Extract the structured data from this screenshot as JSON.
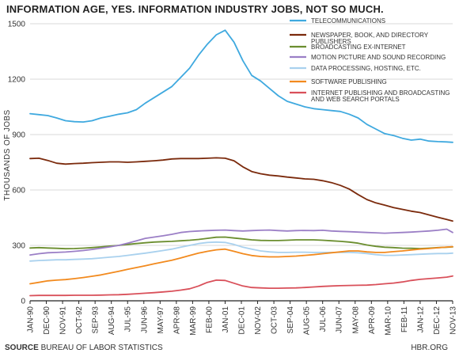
{
  "header": {
    "title": "INFORMATION AGE, YES. INFORMATION INDUSTRY JOBS, NOT SO MUCH."
  },
  "footer": {
    "source_label": "SOURCE",
    "source_text": "BUREAU OF LABOR STATISTICS",
    "brand": "HBR.ORG"
  },
  "chart_data": {
    "type": "line",
    "title": "INFORMATION AGE, YES. INFORMATION INDUSTRY JOBS, NOT SO MUCH.",
    "xlabel": "",
    "ylabel": "THOUSANDS OF JOBS",
    "ylim": [
      0,
      1500
    ],
    "yticks": [
      0,
      300,
      600,
      900,
      1200,
      1500
    ],
    "xlim": [
      "1990-01",
      "2013-11"
    ],
    "grid": "horizontal",
    "legend": "top-right",
    "xtick_labels": [
      "JAN-90",
      "DEC-90",
      "NOV-91",
      "OCT-92",
      "SEP-93",
      "AUG-94",
      "JUL-95",
      "JUN-96",
      "MAY-97",
      "APR-98",
      "MAR-99",
      "FEB-00",
      "JAN-01",
      "DEC-01",
      "NOV-02",
      "OCT-03",
      "SEP-04",
      "AUG-05",
      "JUL-06",
      "JUN-07",
      "MAY-08",
      "APR-09",
      "MAR-10",
      "FEB-11",
      "JAN-12",
      "DEC-12",
      "NOV-13"
    ],
    "x": [
      "1990-01",
      "1990-07",
      "1991-01",
      "1991-07",
      "1992-01",
      "1992-07",
      "1993-01",
      "1993-07",
      "1994-01",
      "1994-07",
      "1995-01",
      "1995-07",
      "1996-01",
      "1996-07",
      "1997-01",
      "1997-07",
      "1998-01",
      "1998-07",
      "1999-01",
      "1999-07",
      "2000-01",
      "2000-07",
      "2001-01",
      "2001-07",
      "2002-01",
      "2002-07",
      "2003-01",
      "2003-07",
      "2004-01",
      "2004-07",
      "2005-01",
      "2005-07",
      "2006-01",
      "2006-07",
      "2007-01",
      "2007-07",
      "2008-01",
      "2008-07",
      "2009-01",
      "2009-07",
      "2010-01",
      "2010-07",
      "2011-01",
      "2011-07",
      "2012-01",
      "2012-07",
      "2013-01",
      "2013-07",
      "2013-11"
    ],
    "series": [
      {
        "name": "TELECOMMUNICATIONS",
        "color": "#3fa9df",
        "values": [
          1013,
          1008,
          1003,
          990,
          975,
          970,
          968,
          975,
          990,
          1000,
          1010,
          1018,
          1035,
          1070,
          1100,
          1130,
          1160,
          1210,
          1260,
          1330,
          1390,
          1440,
          1465,
          1400,
          1300,
          1220,
          1190,
          1150,
          1110,
          1080,
          1065,
          1050,
          1040,
          1035,
          1030,
          1025,
          1010,
          990,
          955,
          930,
          905,
          895,
          880,
          870,
          875,
          865,
          862,
          860,
          858
        ]
      },
      {
        "name": "NEWSPAPER, BOOK, AND DIRECTORY PUBLISHERS",
        "color": "#7b2a0c",
        "values": [
          770,
          772,
          760,
          745,
          740,
          743,
          745,
          748,
          750,
          752,
          752,
          750,
          752,
          755,
          758,
          762,
          768,
          770,
          770,
          770,
          772,
          774,
          772,
          758,
          725,
          700,
          688,
          680,
          676,
          670,
          665,
          660,
          658,
          650,
          640,
          625,
          605,
          575,
          548,
          530,
          518,
          505,
          495,
          485,
          478,
          465,
          452,
          440,
          432
        ]
      },
      {
        "name": "BROADCASTING EX-INTERNET",
        "color": "#6b8e2f",
        "values": [
          286,
          288,
          286,
          284,
          282,
          283,
          285,
          288,
          292,
          296,
          300,
          305,
          310,
          314,
          318,
          320,
          322,
          325,
          328,
          332,
          338,
          344,
          345,
          340,
          335,
          330,
          327,
          326,
          326,
          328,
          330,
          330,
          330,
          328,
          325,
          322,
          318,
          312,
          302,
          295,
          290,
          288,
          285,
          284,
          283,
          285,
          288,
          290,
          292
        ]
      },
      {
        "name": "MOTION PICTURE AND SOUND RECORDING",
        "color": "#9b7fc6",
        "values": [
          248,
          255,
          260,
          262,
          264,
          268,
          272,
          278,
          285,
          292,
          300,
          312,
          325,
          338,
          345,
          352,
          360,
          370,
          375,
          378,
          380,
          382,
          383,
          380,
          378,
          380,
          382,
          383,
          380,
          378,
          380,
          381,
          380,
          382,
          378,
          376,
          374,
          372,
          370,
          368,
          366,
          368,
          370,
          372,
          375,
          378,
          382,
          388,
          370
        ]
      },
      {
        "name": "DATA PROCESSING, HOSTING, ETC.",
        "color": "#a9d1ee",
        "values": [
          215,
          218,
          220,
          222,
          222,
          224,
          226,
          228,
          232,
          236,
          240,
          246,
          252,
          258,
          265,
          272,
          280,
          290,
          300,
          310,
          316,
          318,
          316,
          305,
          290,
          280,
          270,
          265,
          262,
          262,
          263,
          263,
          262,
          262,
          262,
          262,
          262,
          260,
          256,
          250,
          246,
          246,
          248,
          250,
          252,
          254,
          256,
          256,
          258
        ]
      },
      {
        "name": "SOFTWARE PUBLISHING",
        "color": "#f28a1e",
        "values": [
          92,
          100,
          108,
          112,
          115,
          120,
          126,
          133,
          140,
          150,
          160,
          170,
          180,
          190,
          200,
          210,
          220,
          232,
          245,
          258,
          268,
          276,
          280,
          268,
          255,
          245,
          240,
          238,
          238,
          240,
          242,
          246,
          250,
          255,
          260,
          265,
          270,
          270,
          265,
          262,
          262,
          266,
          270,
          275,
          280,
          283,
          287,
          291,
          293
        ]
      },
      {
        "name": "INTERNET PUBLISHING AND BROADCASTING AND WEB SEARCH PORTALS",
        "color": "#d9505a",
        "values": [
          28,
          29,
          29,
          29,
          29,
          30,
          30,
          30,
          31,
          32,
          33,
          35,
          38,
          41,
          44,
          48,
          52,
          58,
          65,
          80,
          100,
          112,
          110,
          95,
          80,
          72,
          70,
          68,
          68,
          69,
          70,
          72,
          75,
          78,
          80,
          82,
          83,
          84,
          85,
          88,
          92,
          96,
          102,
          110,
          116,
          120,
          124,
          128,
          134
        ]
      }
    ]
  }
}
